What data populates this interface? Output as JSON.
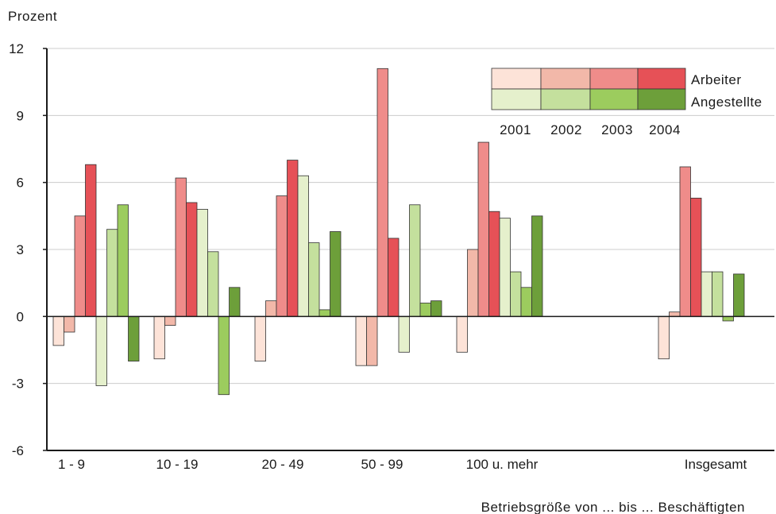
{
  "colors": {
    "arbeiter": [
      "#fde3d8",
      "#f2b8a9",
      "#ef8c8a",
      "#e65157"
    ],
    "angestellte": [
      "#e5f0cc",
      "#c4e09d",
      "#9ccc5e",
      "#6d9f3a"
    ],
    "grid": "#cccccc",
    "axis": "#1a1a1a",
    "bar_stroke": "#333333"
  },
  "chart_data": {
    "type": "bar",
    "ylabel": "Prozent",
    "xlabel": "Betriebsgröße von ... bis ... Beschäftigten",
    "ylim": [
      -6,
      12
    ],
    "yticks": [
      12,
      9,
      6,
      3,
      0,
      -3,
      -6
    ],
    "ytick_labels": [
      "12",
      "9",
      "6",
      "3",
      "0",
      "-3",
      "-6"
    ],
    "grid": true,
    "legend_position": "top-right",
    "legend": {
      "years": [
        "2001",
        "2002",
        "2003",
        "2004"
      ],
      "groups": [
        "Arbeiter",
        "Angestellte"
      ]
    },
    "categories": [
      "1 - 9",
      "10 - 19",
      "20 - 49",
      "50 - 99",
      "100 u. mehr",
      "",
      "Insgesamt"
    ],
    "series": [
      {
        "name": "Arbeiter 2001",
        "group": "arbeiter",
        "year_index": 0,
        "values": [
          -1.3,
          -1.9,
          -2.0,
          -2.2,
          -1.6,
          null,
          -1.9
        ]
      },
      {
        "name": "Arbeiter 2002",
        "group": "arbeiter",
        "year_index": 1,
        "values": [
          -0.7,
          -0.4,
          0.7,
          -2.2,
          3.0,
          null,
          0.2
        ]
      },
      {
        "name": "Arbeiter 2003",
        "group": "arbeiter",
        "year_index": 2,
        "values": [
          4.5,
          6.2,
          5.4,
          11.1,
          7.8,
          null,
          6.7
        ]
      },
      {
        "name": "Arbeiter 2004",
        "group": "arbeiter",
        "year_index": 3,
        "values": [
          6.8,
          5.1,
          7.0,
          3.5,
          4.7,
          null,
          5.3
        ]
      },
      {
        "name": "Angestellte 2001",
        "group": "angestellte",
        "year_index": 0,
        "values": [
          -3.1,
          4.8,
          6.3,
          -1.6,
          4.4,
          null,
          2.0
        ]
      },
      {
        "name": "Angestellte 2002",
        "group": "angestellte",
        "year_index": 1,
        "values": [
          3.9,
          2.9,
          3.3,
          5.0,
          2.0,
          null,
          2.0
        ]
      },
      {
        "name": "Angestellte 2003",
        "group": "angestellte",
        "year_index": 2,
        "values": [
          5.0,
          -3.5,
          0.3,
          0.6,
          1.3,
          null,
          -0.2
        ]
      },
      {
        "name": "Angestellte 2004",
        "group": "angestellte",
        "year_index": 3,
        "values": [
          -2.0,
          1.3,
          3.8,
          0.7,
          4.5,
          null,
          1.9
        ]
      }
    ]
  }
}
